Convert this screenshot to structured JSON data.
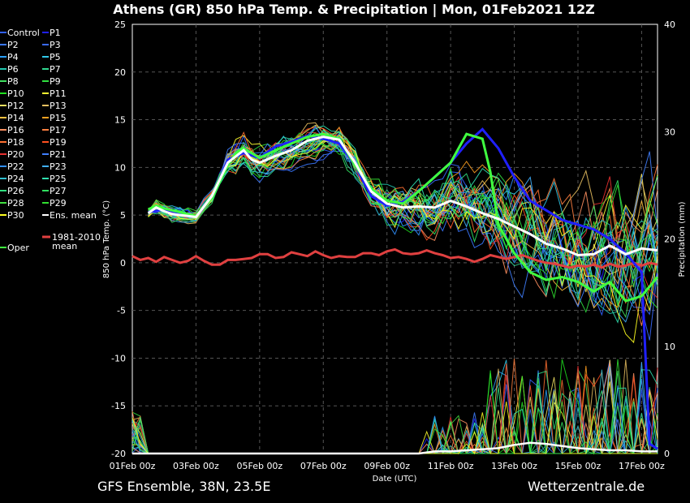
{
  "chart_data": {
    "type": "line",
    "title": "Athens  (GR)  850 hPa Temp. & Precipitation | Mon, 01Feb2021 12Z",
    "xlabel": "Date (UTC)",
    "ylabel": "850 hPa Temp. (°C)",
    "y2label": "Precipitation (mm)",
    "footer_left": "GFS Ensemble, 38N, 23.5E",
    "footer_right": "Wetterzentrale.de",
    "x_ticks": [
      "01Feb 00z",
      "03Feb 00z",
      "05Feb 00z",
      "07Feb 00z",
      "09Feb 00z",
      "11Feb 00z",
      "13Feb 00z",
      "15Feb 00z",
      "17Feb 00z"
    ],
    "xlim_days": [
      0,
      16.5
    ],
    "ylim": [
      -20,
      25
    ],
    "y_ticks": [
      -20,
      -15,
      -10,
      -5,
      0,
      5,
      10,
      15,
      20,
      25
    ],
    "y2lim": [
      0,
      40
    ],
    "y2_ticks": [
      0,
      10,
      20,
      30,
      40
    ],
    "grid": true,
    "legend_placement": "left",
    "legend": [
      {
        "name": "Control",
        "color": "#3060ff"
      },
      {
        "name": "P1",
        "color": "#2020ff"
      },
      {
        "name": "P2",
        "color": "#3a78ff"
      },
      {
        "name": "P3",
        "color": "#3a6aff"
      },
      {
        "name": "P4",
        "color": "#2aa0ff"
      },
      {
        "name": "P5",
        "color": "#30c8e8"
      },
      {
        "name": "P6",
        "color": "#20c8b0"
      },
      {
        "name": "P7",
        "color": "#30d890"
      },
      {
        "name": "P8",
        "color": "#40e060"
      },
      {
        "name": "P9",
        "color": "#30e040"
      },
      {
        "name": "P10",
        "color": "#20e020"
      },
      {
        "name": "P11",
        "color": "#ffff30"
      },
      {
        "name": "P12",
        "color": "#f0e060"
      },
      {
        "name": "P13",
        "color": "#e8c060"
      },
      {
        "name": "P14",
        "color": "#ffc040"
      },
      {
        "name": "P15",
        "color": "#ffa020"
      },
      {
        "name": "P16",
        "color": "#ff9060"
      },
      {
        "name": "P17",
        "color": "#ff8040"
      },
      {
        "name": "P18",
        "color": "#ff7030"
      },
      {
        "name": "P19",
        "color": "#ff5020"
      },
      {
        "name": "P20",
        "color": "#e83030"
      },
      {
        "name": "P21",
        "color": "#4080ff"
      },
      {
        "name": "P22",
        "color": "#3090ff"
      },
      {
        "name": "P23",
        "color": "#40b0ff"
      },
      {
        "name": "P24",
        "color": "#30c0d0"
      },
      {
        "name": "P25",
        "color": "#30e0b0"
      },
      {
        "name": "P26",
        "color": "#30e080"
      },
      {
        "name": "P27",
        "color": "#30e060"
      },
      {
        "name": "P28",
        "color": "#40e040"
      },
      {
        "name": "P29",
        "color": "#30e030"
      },
      {
        "name": "P30",
        "color": "#ffff20"
      },
      {
        "name": "Ens. mean",
        "color": "#ffffff"
      },
      {
        "name": "Oper",
        "color": "#40ff40"
      },
      {
        "name": "1981-2010 mean",
        "color": "#e04040"
      }
    ],
    "series": [
      {
        "name": "Ens. mean",
        "color": "#ffffff",
        "width": 3,
        "x": [
          0.5,
          0.75,
          1,
          1.25,
          1.5,
          1.75,
          2,
          2.5,
          3,
          3.5,
          3.75,
          4,
          4.5,
          5,
          5.5,
          6,
          6.5,
          7,
          7.5,
          8,
          8.5,
          9,
          9.5,
          10,
          10.5,
          11,
          11.5,
          12,
          12.5,
          13,
          13.5,
          14,
          14.5,
          15,
          15.5,
          16,
          16.5
        ],
        "y": [
          5.2,
          5.8,
          5.4,
          5.1,
          5.0,
          4.9,
          4.8,
          7.0,
          10.5,
          11.8,
          10.8,
          10.5,
          11.2,
          11.8,
          12.8,
          13.2,
          12.9,
          10.5,
          7.5,
          6.2,
          5.8,
          5.9,
          5.8,
          6.5,
          5.9,
          5.2,
          4.6,
          3.8,
          3.0,
          2.0,
          1.5,
          0.8,
          0.9,
          1.8,
          0.9,
          1.5,
          1.3
        ]
      },
      {
        "name": "Oper",
        "color": "#40ff40",
        "width": 3,
        "x": [
          0.5,
          0.75,
          1,
          1.5,
          2,
          2.5,
          3,
          3.25,
          3.5,
          4,
          4.5,
          5,
          5.5,
          6,
          6.5,
          7,
          7.5,
          8,
          8.5,
          9,
          9.5,
          10,
          10.5,
          11,
          11.25,
          11.5,
          12,
          12.5,
          13,
          13.5,
          14,
          14.5,
          15,
          15.5,
          16,
          16.5
        ],
        "y": [
          5.6,
          6.0,
          5.7,
          5.3,
          4.9,
          6.8,
          10.2,
          11.5,
          12.0,
          11.0,
          11.8,
          12.5,
          13.2,
          13.5,
          13.0,
          10.2,
          7.8,
          6.5,
          6.2,
          7.5,
          9.0,
          10.5,
          13.5,
          13.0,
          9.5,
          4.0,
          1.0,
          -1.0,
          -1.8,
          -1.5,
          -2.0,
          -3.0,
          -2.0,
          -4.0,
          -3.5,
          -1.5
        ]
      },
      {
        "name": "P1",
        "color": "#2020ff",
        "width": 3,
        "x": [
          0.5,
          1,
          1.5,
          2,
          2.5,
          3,
          3.5,
          4,
          4.5,
          5,
          5.5,
          6,
          6.5,
          7,
          7.5,
          8,
          8.5,
          9,
          9.5,
          10,
          10.5,
          11,
          11.5,
          12,
          12.5,
          13,
          13.5,
          14,
          14.5,
          15,
          15.5,
          16,
          16.25,
          16.5
        ],
        "y": [
          5.3,
          5.6,
          5.2,
          4.8,
          6.8,
          10.8,
          11.5,
          11.0,
          12.2,
          12.7,
          13.3,
          13.0,
          12.5,
          10.2,
          7.0,
          6.0,
          6.4,
          7.5,
          9.0,
          10.5,
          12.5,
          14.0,
          12.0,
          9.0,
          6.5,
          5.5,
          4.5,
          4.0,
          3.5,
          2.5,
          1.0,
          -1.0,
          -19.0,
          -19.5
        ]
      },
      {
        "name": "1981-2010 mean",
        "color": "#e04040",
        "width": 3,
        "x": [
          0,
          0.25,
          0.5,
          0.75,
          1,
          1.25,
          1.5,
          1.75,
          2,
          2.25,
          2.5,
          2.75,
          3,
          3.25,
          3.5,
          3.75,
          4,
          4.25,
          4.5,
          4.75,
          5,
          5.25,
          5.5,
          5.75,
          6,
          6.25,
          6.5,
          6.75,
          7,
          7.25,
          7.5,
          7.75,
          8,
          8.25,
          8.5,
          8.75,
          9,
          9.25,
          9.5,
          9.75,
          10,
          10.25,
          10.5,
          10.75,
          11,
          11.25,
          11.5,
          11.75,
          12,
          12.25,
          12.5,
          12.75,
          13,
          13.25,
          13.5,
          13.75,
          14,
          14.25,
          14.5,
          14.75,
          15,
          15.25,
          15.5,
          15.75,
          16,
          16.25,
          16.5
        ],
        "y": [
          0.7,
          0.3,
          0.5,
          0.1,
          0.6,
          0.3,
          0.0,
          0.2,
          0.7,
          0.2,
          -0.2,
          -0.2,
          0.3,
          0.3,
          0.4,
          0.5,
          0.9,
          0.9,
          0.5,
          0.6,
          1.1,
          0.9,
          0.7,
          1.2,
          0.8,
          0.5,
          0.7,
          0.6,
          0.6,
          1.0,
          1.0,
          0.8,
          1.2,
          1.4,
          1.0,
          0.9,
          1.0,
          1.3,
          1.0,
          0.8,
          0.5,
          0.6,
          0.4,
          0.1,
          0.4,
          0.8,
          0.6,
          0.4,
          0.6,
          0.8,
          0.5,
          0.2,
          0.0,
          -0.1,
          -0.3,
          -0.5,
          -0.3,
          -0.4,
          -0.2,
          -0.5,
          -0.1,
          -0.4,
          -0.3,
          0.0,
          -0.3,
          0.0,
          -0.2
        ]
      }
    ],
    "precipitation_series": [
      {
        "name": "Ens. mean",
        "color": "#ffffff",
        "x": [
          0,
          1,
          2,
          3,
          4,
          5,
          6,
          7,
          8,
          9,
          9.5,
          10,
          10.5,
          11,
          11.5,
          12,
          12.5,
          13,
          13.5,
          14,
          14.5,
          15,
          15.5,
          16,
          16.5
        ],
        "y": [
          0,
          0,
          0,
          0,
          0,
          0,
          0,
          0,
          0,
          0,
          0.2,
          0.2,
          0.3,
          0.4,
          0.5,
          0.8,
          1.0,
          0.9,
          0.7,
          0.5,
          0.4,
          0.3,
          0.3,
          0.2,
          0.2
        ]
      }
    ]
  }
}
